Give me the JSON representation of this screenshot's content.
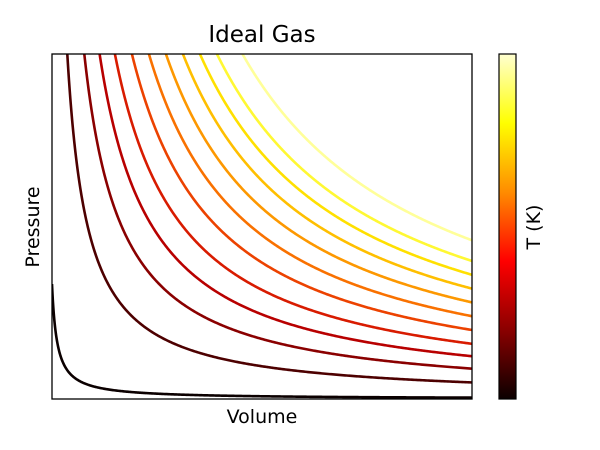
{
  "chart_data": {
    "type": "line",
    "title": "Ideal Gas",
    "xlabel": "Volume",
    "ylabel": "Pressure",
    "xticks_visible": false,
    "yticks_visible": false,
    "grid": false,
    "legend": "none",
    "x_range": [
      0,
      1
    ],
    "y_range": [
      0,
      1
    ],
    "curve_form": "pressure proportional to k / volume",
    "x": [
      0.005,
      0.01,
      0.02,
      0.04,
      0.07,
      0.1,
      0.15,
      0.2,
      0.3,
      0.4,
      0.5,
      0.6,
      0.7,
      0.8,
      0.9,
      1.0
    ],
    "series": [
      {
        "k": 0.004,
        "color": "#0b0000",
        "values": [
          0.8,
          0.4,
          0.2,
          0.1,
          0.057,
          0.04,
          0.027,
          0.02,
          0.013,
          0.01,
          0.008,
          0.007,
          0.006,
          0.005,
          0.004,
          0.004
        ]
      },
      {
        "k": 0.048,
        "color": "#4d0000",
        "values": [
          null,
          null,
          null,
          null,
          0.686,
          0.48,
          0.32,
          0.24,
          0.16,
          0.12,
          0.096,
          0.08,
          0.069,
          0.06,
          0.053,
          0.048
        ]
      },
      {
        "k": 0.088,
        "color": "#8a0000",
        "values": [
          null,
          null,
          null,
          null,
          null,
          0.88,
          0.587,
          0.44,
          0.293,
          0.22,
          0.176,
          0.147,
          0.126,
          0.11,
          0.098,
          0.088
        ]
      },
      {
        "k": 0.124,
        "color": "#b80000",
        "values": [
          null,
          null,
          null,
          null,
          null,
          null,
          0.827,
          0.62,
          0.413,
          0.31,
          0.248,
          0.207,
          0.177,
          0.155,
          0.138,
          0.124
        ]
      },
      {
        "k": 0.16,
        "color": "#d81b00",
        "values": [
          null,
          null,
          null,
          null,
          null,
          null,
          null,
          0.8,
          0.533,
          0.4,
          0.32,
          0.267,
          0.229,
          0.2,
          0.178,
          0.16
        ]
      },
      {
        "k": 0.2,
        "color": "#ec4200",
        "values": [
          null,
          null,
          null,
          null,
          null,
          null,
          null,
          null,
          0.667,
          0.5,
          0.4,
          0.333,
          0.286,
          0.25,
          0.222,
          0.2
        ]
      },
      {
        "k": 0.24,
        "color": "#f97100",
        "values": [
          null,
          null,
          null,
          null,
          null,
          null,
          null,
          null,
          0.8,
          0.6,
          0.48,
          0.4,
          0.343,
          0.3,
          0.267,
          0.24
        ]
      },
      {
        "k": 0.28,
        "color": "#fd9800",
        "values": [
          null,
          null,
          null,
          null,
          null,
          null,
          null,
          null,
          0.933,
          0.7,
          0.56,
          0.467,
          0.4,
          0.35,
          0.311,
          0.28
        ]
      },
      {
        "k": 0.32,
        "color": "#ffbf00",
        "values": [
          null,
          null,
          null,
          null,
          null,
          null,
          null,
          null,
          null,
          0.8,
          0.64,
          0.533,
          0.457,
          0.4,
          0.356,
          0.32
        ]
      },
      {
        "k": 0.36,
        "color": "#ffe000",
        "values": [
          null,
          null,
          null,
          null,
          null,
          null,
          null,
          null,
          null,
          0.9,
          0.72,
          0.6,
          0.514,
          0.45,
          0.4,
          0.36
        ]
      },
      {
        "k": 0.4,
        "color": "#fff833",
        "values": [
          null,
          null,
          null,
          null,
          null,
          null,
          null,
          null,
          null,
          1.0,
          0.8,
          0.667,
          0.571,
          0.5,
          0.444,
          0.4
        ]
      },
      {
        "k": 0.46,
        "color": "#ffff99",
        "values": [
          null,
          null,
          null,
          null,
          null,
          null,
          null,
          null,
          null,
          null,
          0.92,
          0.767,
          0.657,
          0.575,
          0.511,
          0.46
        ]
      }
    ],
    "colorbar": {
      "label": "T (K)",
      "colormap": "hot",
      "stops": [
        "#0b0000",
        "#8a0000",
        "#ff0000",
        "#ff8c00",
        "#ffff00",
        "#ffffd0"
      ],
      "ticks_visible": false
    }
  }
}
